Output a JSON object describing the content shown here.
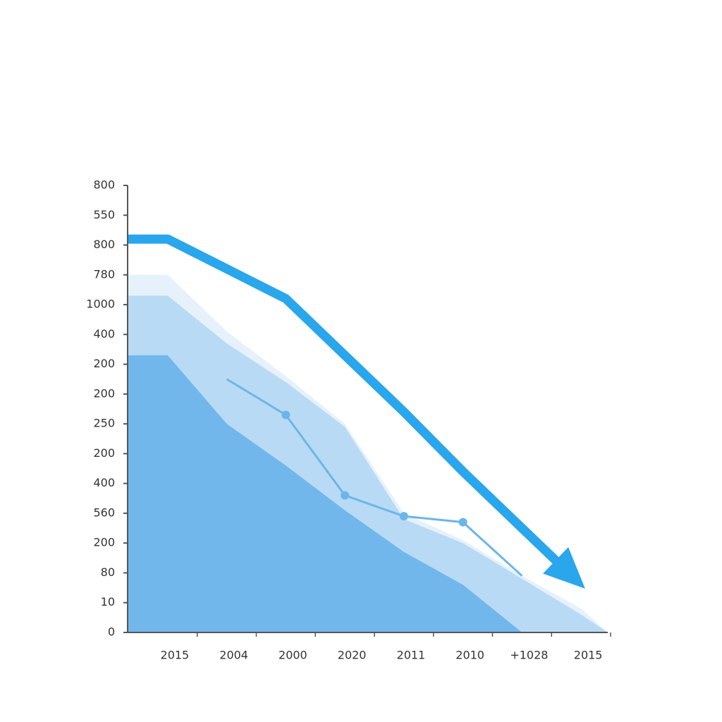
{
  "chart_data": {
    "type": "area",
    "categories": [
      "2015",
      "2004",
      "2000",
      "2020",
      "2011",
      "2010",
      "+1028",
      "2015"
    ],
    "ylim": [
      0,
      15
    ],
    "yticks": [
      {
        "value": 0,
        "label": "0"
      },
      {
        "value": 1,
        "label": "10"
      },
      {
        "value": 2,
        "label": "80"
      },
      {
        "value": 3,
        "label": "200"
      },
      {
        "value": 4,
        "label": "560"
      },
      {
        "value": 5,
        "label": "400"
      },
      {
        "value": 6,
        "label": "200"
      },
      {
        "value": 7,
        "label": "250"
      },
      {
        "value": 8,
        "label": "200"
      },
      {
        "value": 9,
        "label": "200"
      },
      {
        "value": 10,
        "label": "400"
      },
      {
        "value": 11,
        "label": "1000"
      },
      {
        "value": 12,
        "label": "780"
      },
      {
        "value": 13,
        "label": "800"
      },
      {
        "value": 14,
        "label": "550"
      },
      {
        "value": 15,
        "label": "800"
      }
    ],
    "series": [
      {
        "type": "area",
        "color": "#e6f1fb",
        "values": [
          12.0,
          10.1,
          8.6,
          7.0,
          4.0,
          3.1,
          1.9,
          0.8
        ]
      },
      {
        "type": "area",
        "color": "#b9daf4",
        "values": [
          11.3,
          9.7,
          8.4,
          6.9,
          3.8,
          3.0,
          1.8,
          0.6
        ]
      },
      {
        "type": "area",
        "color": "#72b7eb",
        "values": [
          9.3,
          7.0,
          5.6,
          4.1,
          2.7,
          1.6,
          0,
          0
        ]
      },
      {
        "type": "line",
        "color": "#6bb6e8",
        "values": [
          null,
          8.5,
          7.3,
          4.6,
          3.9,
          3.7,
          1.9,
          null
        ]
      },
      {
        "type": "arrow",
        "color": "#2aa6ec",
        "values": [
          13.2,
          12.2,
          11.2,
          9.3,
          7.4,
          5.4,
          3.5,
          1.6
        ]
      }
    ]
  }
}
